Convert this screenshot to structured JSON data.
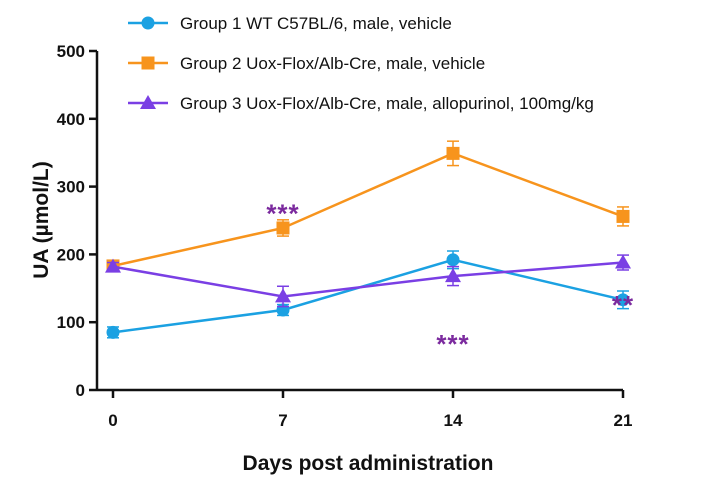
{
  "chart_data": {
    "type": "line",
    "title": "",
    "xlabel": "Days post administration",
    "ylabel": "UA (µmol/L)",
    "x": [
      0,
      7,
      14,
      21
    ],
    "xticks": [
      "0",
      "7",
      "14",
      "21"
    ],
    "xlim": [
      0,
      21
    ],
    "ylim": [
      0,
      500
    ],
    "yticks": [
      "0",
      "100",
      "200",
      "300",
      "400",
      "500"
    ],
    "grid": false,
    "legend_position": "top",
    "series": [
      {
        "name": "Group 1 WT C57BL/6, male, vehicle",
        "color": "#1ba1e2",
        "marker": "circle",
        "values": [
          85,
          118,
          192,
          133
        ],
        "errors": [
          8,
          8,
          13,
          13
        ]
      },
      {
        "name": "Group 2 Uox-Flox/Alb-Cre, male, vehicle",
        "color": "#f7941d",
        "marker": "square",
        "values": [
          183,
          239,
          349,
          256
        ],
        "errors": [
          5,
          12,
          18,
          14
        ]
      },
      {
        "name": "Group 3 Uox-Flox/Alb-Cre, male, allopurinol, 100mg/kg",
        "color": "#7a3fe4",
        "marker": "triangle",
        "values": [
          182,
          138,
          168,
          188
        ],
        "errors": [
          6,
          15,
          14,
          11
        ]
      }
    ],
    "annotations": [
      {
        "text": "***",
        "x": 7,
        "y": 268,
        "color": "#7b2a9e"
      },
      {
        "text": "***",
        "x": 14,
        "y": 75,
        "color": "#7b2a9e"
      },
      {
        "text": "**",
        "x": 21,
        "y": 133,
        "color": "#7b2a9e"
      }
    ]
  }
}
